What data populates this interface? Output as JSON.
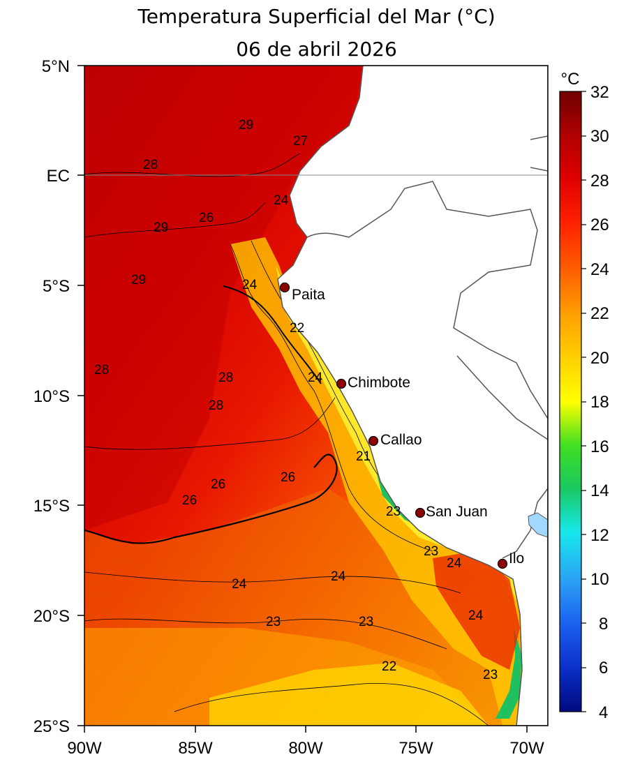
{
  "title": "Temperatura Superficial del Mar (°C)",
  "date": "06 de abril 2026",
  "colorbar": {
    "unit": "°C",
    "ticks": [
      "32",
      "30",
      "28",
      "26",
      "24",
      "22",
      "20",
      "18",
      "16",
      "14",
      "12",
      "10",
      "8",
      "6",
      "4"
    ],
    "range": [
      4,
      32
    ],
    "colors": [
      "#000a80",
      "#0b2fc8",
      "#1a5ff0",
      "#2aa0f5",
      "#18e8ec",
      "#18c860",
      "#40e020",
      "#ffff00",
      "#ffd000",
      "#ffa000",
      "#ff6000",
      "#ff2000",
      "#e00000",
      "#b00000",
      "#700000"
    ]
  },
  "axes": {
    "y_ticks": [
      "5°N",
      "EC",
      "5°S",
      "10°S",
      "15°S",
      "20°S",
      "25°S"
    ],
    "x_ticks": [
      "90W",
      "85W",
      "80W",
      "75W",
      "70W"
    ]
  },
  "contour_labels": [
    "29",
    "27",
    "28",
    "24",
    "26",
    "29",
    "29",
    "24",
    "22",
    "28",
    "28",
    "24",
    "28",
    "21",
    "26",
    "26",
    "26",
    "23",
    "23",
    "24",
    "24",
    "24",
    "23",
    "24",
    "23",
    "22",
    "23"
  ],
  "cities": [
    "Paita",
    "Chimbote",
    "Callao",
    "San Juan",
    "Ilo"
  ]
}
